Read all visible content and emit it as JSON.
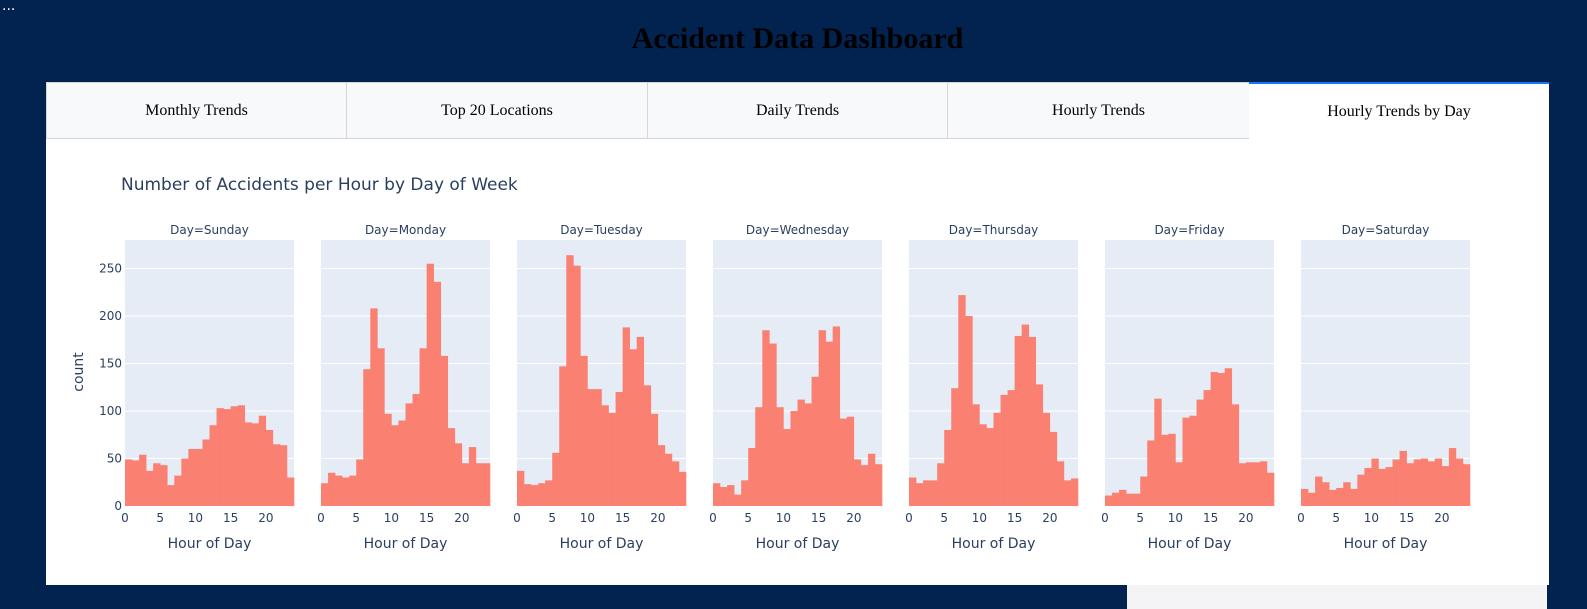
{
  "ellipsis": "...",
  "page": {
    "title": "Accident Data Dashboard"
  },
  "tabs": [
    {
      "label": "Monthly Trends",
      "active": false
    },
    {
      "label": "Top 20 Locations",
      "active": false
    },
    {
      "label": "Daily Trends",
      "active": false
    },
    {
      "label": "Hourly Trends",
      "active": false
    },
    {
      "label": "Hourly Trends by Day",
      "active": true
    }
  ],
  "colors": {
    "bar": "#fa8072",
    "plot_bg": "#e5ecf6",
    "text": "#2a3f5f",
    "header_bg": "#02234f",
    "accent": "#1975fa"
  },
  "chart_data": {
    "type": "bar",
    "title": "Number of Accidents per Hour by Day of Week",
    "ylabel": "count",
    "xlabel": "Hour of Day",
    "ylim": [
      0,
      280
    ],
    "xlim": [
      0,
      24
    ],
    "yticks": [
      0,
      50,
      100,
      150,
      200,
      250
    ],
    "xticks": [
      0,
      5,
      10,
      15,
      20
    ],
    "hours": [
      0,
      1,
      2,
      3,
      4,
      5,
      6,
      7,
      8,
      9,
      10,
      11,
      12,
      13,
      14,
      15,
      16,
      17,
      18,
      19,
      20,
      21,
      22,
      23
    ],
    "series": [
      {
        "name": "Day=Sunday",
        "values": [
          49,
          48,
          54,
          37,
          45,
          43,
          22,
          32,
          50,
          60,
          60,
          70,
          85,
          103,
          102,
          105,
          106,
          88,
          87,
          95,
          80,
          65,
          64,
          30
        ]
      },
      {
        "name": "Day=Monday",
        "values": [
          24,
          35,
          32,
          30,
          32,
          49,
          144,
          208,
          166,
          97,
          85,
          90,
          108,
          118,
          166,
          255,
          236,
          158,
          82,
          66,
          45,
          62,
          45,
          45
        ]
      },
      {
        "name": "Day=Tuesday",
        "values": [
          37,
          23,
          22,
          24,
          27,
          56,
          147,
          264,
          253,
          158,
          123,
          123,
          106,
          98,
          120,
          188,
          165,
          178,
          127,
          97,
          64,
          55,
          47,
          36
        ]
      },
      {
        "name": "Day=Wednesday",
        "values": [
          24,
          20,
          22,
          12,
          27,
          61,
          104,
          185,
          171,
          104,
          81,
          100,
          112,
          108,
          136,
          185,
          173,
          189,
          92,
          94,
          49,
          43,
          55,
          44
        ]
      },
      {
        "name": "Day=Thursday",
        "values": [
          30,
          24,
          27,
          27,
          45,
          80,
          124,
          222,
          200,
          107,
          86,
          82,
          98,
          117,
          122,
          179,
          191,
          178,
          128,
          98,
          78,
          47,
          27,
          29
        ]
      },
      {
        "name": "Day=Friday",
        "values": [
          11,
          14,
          17,
          13,
          13,
          31,
          69,
          113,
          75,
          76,
          46,
          93,
          95,
          112,
          122,
          141,
          140,
          145,
          107,
          45,
          46,
          46,
          47,
          35
        ]
      },
      {
        "name": "Day=Saturday",
        "values": [
          18,
          14,
          31,
          25,
          17,
          19,
          25,
          18,
          33,
          40,
          50,
          39,
          41,
          49,
          58,
          45,
          49,
          50,
          47,
          50,
          42,
          61,
          50,
          44
        ]
      }
    ]
  }
}
